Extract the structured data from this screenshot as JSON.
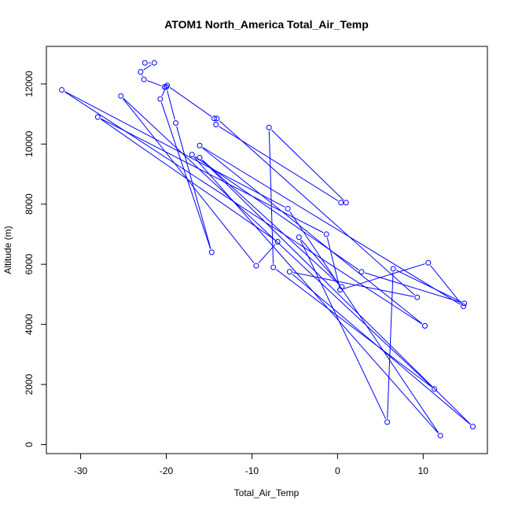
{
  "chart_data": {
    "type": "line",
    "title": "ATOM1 North_America Total_Air_Temp",
    "xlabel": "Total_Air_Temp",
    "ylabel": "Altitude (m)",
    "xlim": [
      -34,
      17.5
    ],
    "ylim": [
      -300,
      13250
    ],
    "xticks": [
      -30,
      -20,
      -10,
      0,
      10
    ],
    "yticks": [
      0,
      2000,
      4000,
      6000,
      8000,
      10000,
      12000
    ],
    "xtick_labels": [
      "-30",
      "-20",
      "-10",
      "0",
      "10"
    ],
    "ytick_labels": [
      "0",
      "2000",
      "4000",
      "6000",
      "8000",
      "10000",
      "12000"
    ],
    "grid": false,
    "legend": "none",
    "color": "#0000ff",
    "series": [
      {
        "x": [
          -22.5,
          -21.4,
          -23.0,
          -22.6,
          -20.2,
          -20.0,
          -18.9,
          -14.7,
          -20.7,
          -19.9,
          -14.4,
          -14.2,
          0.4,
          1.0,
          -8.0,
          -7.5,
          11.3,
          -25.3,
          -9.5,
          -7.0,
          -28.0,
          -1.3,
          0.3,
          10.6,
          14.7,
          -16.1,
          10.2,
          -32.2,
          -5.8,
          12.0,
          -17.0,
          2.8,
          14.8,
          6.5,
          5.8,
          -4.5,
          0.5,
          -16.1,
          15.8,
          -5.6,
          9.3,
          -14.1
        ],
        "y": [
          12700,
          12700,
          12400,
          12150,
          11900,
          11900,
          10700,
          6400,
          11500,
          11950,
          10850,
          10650,
          8050,
          8050,
          10550,
          5900,
          1850,
          11600,
          5950,
          6750,
          10900,
          7000,
          5150,
          6050,
          4600,
          9950,
          3950,
          11800,
          7850,
          300,
          9650,
          5750,
          4700,
          5850,
          750,
          6900,
          5250,
          9550,
          600,
          5750,
          4900,
          10850
        ]
      }
    ]
  }
}
